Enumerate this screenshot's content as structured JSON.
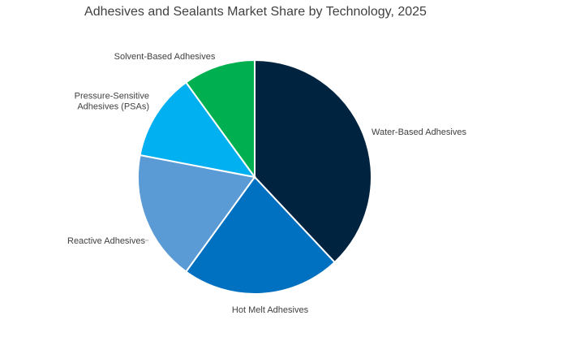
{
  "chart_data": {
    "type": "pie",
    "title": "Adhesives and Sealants Market Share by Technology, 2025",
    "start_angle_deg": 0,
    "direction": "clockwise",
    "legend": "none",
    "slices": [
      {
        "label": "Water-Based Adhesives",
        "value": 38,
        "color": "#002440"
      },
      {
        "label": "Hot Melt Adhesives",
        "value": 22,
        "color": "#0070c0"
      },
      {
        "label": "Reactive Adhesives",
        "value": 18,
        "color": "#5b9bd5"
      },
      {
        "label": "Pressure-Sensitive Adhesives (PSAs)",
        "label_lines": [
          "Pressure-Sensitive",
          "Adhesives (PSAs)"
        ],
        "value": 12,
        "color": "#00b0f0"
      },
      {
        "label": "Solvent-Based Adhesives",
        "value": 10,
        "color": "#00b050"
      }
    ]
  }
}
